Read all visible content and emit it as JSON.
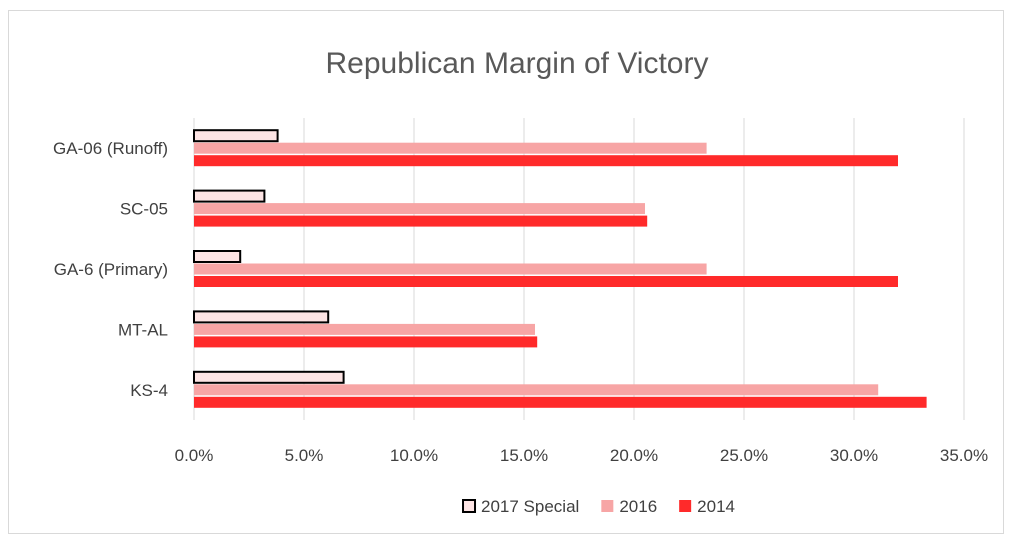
{
  "chart_data": {
    "type": "bar",
    "orientation": "horizontal",
    "title": "Republican Margin of Victory",
    "categories": [
      "GA-06 (Runoff)",
      "SC-05",
      "GA-6 (Primary)",
      "MT-AL",
      "KS-4"
    ],
    "series": [
      {
        "name": "2017 Special",
        "values": [
          3.8,
          3.2,
          2.1,
          6.1,
          6.8
        ],
        "color": "#fde4e4",
        "border_color": "#000000"
      },
      {
        "name": "2016",
        "values": [
          23.3,
          20.5,
          23.3,
          15.5,
          31.1
        ],
        "color": "#f7a5a5"
      },
      {
        "name": "2014",
        "values": [
          32.0,
          20.6,
          32.0,
          15.6,
          33.3
        ],
        "color": "#ff2a2a"
      }
    ],
    "xlim": [
      0,
      35
    ],
    "x_ticks": [
      "0.0%",
      "5.0%",
      "10.0%",
      "15.0%",
      "20.0%",
      "25.0%",
      "30.0%",
      "35.0%"
    ],
    "grid": true,
    "legend": "bottom"
  }
}
